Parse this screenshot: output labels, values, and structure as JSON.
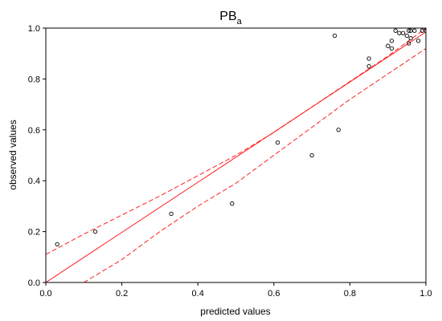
{
  "chart_data": {
    "type": "scatter",
    "title": "PB",
    "title_subscript": "a",
    "xlabel": "predicted values",
    "ylabel": "observed values",
    "xlim": [
      0,
      1
    ],
    "ylim": [
      0,
      1
    ],
    "xticks": [
      "0.0",
      "0.2",
      "0.4",
      "0.6",
      "0.8",
      "1.0"
    ],
    "yticks": [
      "0.0",
      "0.2",
      "0.4",
      "0.6",
      "0.8",
      "1.0"
    ],
    "grid": false,
    "legend": "none",
    "colors": {
      "fit_line": "#ff2020",
      "points": "#000000"
    },
    "points": [
      {
        "x": 0.03,
        "y": 0.15
      },
      {
        "x": 0.13,
        "y": 0.2
      },
      {
        "x": 0.33,
        "y": 0.27
      },
      {
        "x": 0.49,
        "y": 0.31
      },
      {
        "x": 0.61,
        "y": 0.55
      },
      {
        "x": 0.7,
        "y": 0.5
      },
      {
        "x": 0.76,
        "y": 0.97
      },
      {
        "x": 0.77,
        "y": 0.6
      },
      {
        "x": 0.85,
        "y": 0.88
      },
      {
        "x": 0.85,
        "y": 0.85
      },
      {
        "x": 0.9,
        "y": 0.93
      },
      {
        "x": 0.91,
        "y": 0.95
      },
      {
        "x": 0.91,
        "y": 0.92
      },
      {
        "x": 0.92,
        "y": 0.99
      },
      {
        "x": 0.93,
        "y": 0.98
      },
      {
        "x": 0.94,
        "y": 0.98
      },
      {
        "x": 0.95,
        "y": 0.97
      },
      {
        "x": 0.955,
        "y": 0.99
      },
      {
        "x": 0.96,
        "y": 0.99
      },
      {
        "x": 0.955,
        "y": 0.94
      },
      {
        "x": 0.96,
        "y": 0.96
      },
      {
        "x": 0.97,
        "y": 0.99
      },
      {
        "x": 0.98,
        "y": 0.95
      },
      {
        "x": 0.99,
        "y": 0.99
      },
      {
        "x": 0.995,
        "y": 1.0
      },
      {
        "x": 1.0,
        "y": 0.99
      }
    ],
    "fit_line": {
      "x": [
        0.0,
        1.0
      ],
      "y": [
        0.0,
        0.985
      ]
    },
    "confidence_upper": {
      "x": [
        0.0,
        0.1,
        0.2,
        0.3,
        0.4,
        0.5,
        0.6,
        0.7,
        0.8,
        0.9,
        1.0
      ],
      "y": [
        0.11,
        0.19,
        0.265,
        0.34,
        0.42,
        0.5,
        0.59,
        0.69,
        0.79,
        0.89,
        1.0
      ]
    },
    "confidence_lower": {
      "x": [
        0.1,
        0.2,
        0.3,
        0.4,
        0.5,
        0.6,
        0.7,
        0.8,
        0.9,
        1.0
      ],
      "y": [
        0.0,
        0.09,
        0.2,
        0.3,
        0.39,
        0.5,
        0.61,
        0.72,
        0.82,
        0.92
      ]
    }
  }
}
